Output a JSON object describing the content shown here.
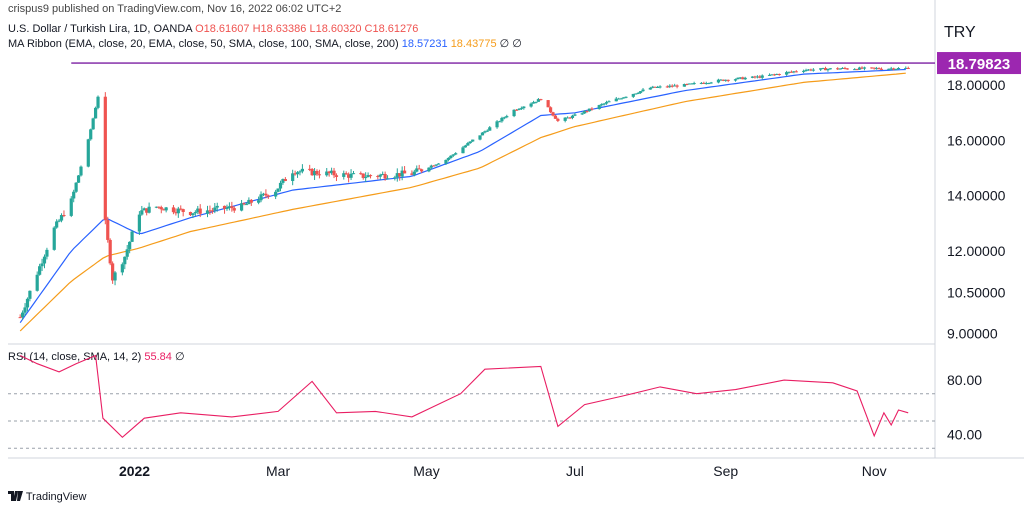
{
  "header": {
    "published": "crispus9 published on TradingView.com, Nov 16, 2022 06:02 UTC+2",
    "symbol_line": "U.S. Dollar / Turkish Lira, 1D, OANDA",
    "ohlc": {
      "o": "O18.61607",
      "h": "H18.63386",
      "l": "L18.60320",
      "c": "C18.61276"
    },
    "ma_ribbon_label": "MA Ribbon (EMA, close, 20, EMA, close, 50, SMA, close, 100, SMA, close, 200)",
    "ma_val_1": "18.57231",
    "ma_val_2": "18.43775",
    "ma_nulls": "∅ ∅",
    "rsi_label": "RSI (14, close, SMA, 14, 2)",
    "rsi_value": "55.84",
    "rsi_null": "∅",
    "currency": "TRY"
  },
  "footer": {
    "brand": "TradingView"
  },
  "colors": {
    "up": "#26a69a",
    "down": "#ef5350",
    "ema20": "#2962ff",
    "ema50": "#f59c1a",
    "rsi": "#e91e63",
    "hline": "#7b1fa2",
    "price_badge": "#9c27b0",
    "ohlc_value": "#ef5350"
  },
  "chart_data": [
    {
      "type": "candlestick",
      "title": "U.S. Dollar / Turkish Lira, 1D, OANDA",
      "price_axis_ticks": [
        "18.00000",
        "16.00000",
        "14.00000",
        "12.00000",
        "10.50000",
        "9.00000"
      ],
      "price_badge": "18.79823",
      "x_ticks": [
        "2022",
        "Mar",
        "May",
        "Jul",
        "Sep",
        "Nov"
      ],
      "horizontal_line": 18.8,
      "anchors": [
        [
          "2021-11-15",
          9.6
        ],
        [
          "2021-11-22",
          11.2
        ],
        [
          "2021-11-29",
          12.8
        ],
        [
          "2021-12-06",
          13.8
        ],
        [
          "2021-12-13",
          16.0
        ],
        [
          "2021-12-17",
          17.6
        ],
        [
          "2021-12-20",
          13.0
        ],
        [
          "2021-12-23",
          11.0
        ],
        [
          "2021-12-28",
          11.8
        ],
        [
          "2022-01-03",
          13.4
        ],
        [
          "2022-01-10",
          13.6
        ],
        [
          "2022-01-24",
          13.4
        ],
        [
          "2022-02-14",
          13.6
        ],
        [
          "2022-02-28",
          14.2
        ],
        [
          "2022-03-07",
          14.9
        ],
        [
          "2022-03-21",
          14.8
        ],
        [
          "2022-04-04",
          14.7
        ],
        [
          "2022-04-25",
          14.8
        ],
        [
          "2022-05-09",
          15.3
        ],
        [
          "2022-05-23",
          16.2
        ],
        [
          "2022-06-06",
          17.1
        ],
        [
          "2022-06-17",
          17.5
        ],
        [
          "2022-06-24",
          16.7
        ],
        [
          "2022-07-01",
          16.9
        ],
        [
          "2022-07-15",
          17.4
        ],
        [
          "2022-08-01",
          17.9
        ],
        [
          "2022-08-15",
          18.0
        ],
        [
          "2022-09-01",
          18.2
        ],
        [
          "2022-09-15",
          18.3
        ],
        [
          "2022-10-03",
          18.55
        ],
        [
          "2022-10-17",
          18.6
        ],
        [
          "2022-11-01",
          18.6
        ],
        [
          "2022-11-15",
          18.61
        ]
      ],
      "ema20": [
        [
          "2021-11-15",
          9.4
        ],
        [
          "2021-12-06",
          12.0
        ],
        [
          "2021-12-20",
          13.2
        ],
        [
          "2022-01-03",
          12.6
        ],
        [
          "2022-01-24",
          13.2
        ],
        [
          "2022-03-07",
          14.2
        ],
        [
          "2022-04-25",
          14.7
        ],
        [
          "2022-05-23",
          15.6
        ],
        [
          "2022-06-17",
          16.9
        ],
        [
          "2022-07-01",
          17.0
        ],
        [
          "2022-08-15",
          17.8
        ],
        [
          "2022-10-03",
          18.4
        ],
        [
          "2022-11-15",
          18.57
        ]
      ],
      "ema50": [
        [
          "2021-11-15",
          9.1
        ],
        [
          "2021-12-06",
          10.9
        ],
        [
          "2021-12-20",
          11.8
        ],
        [
          "2022-01-03",
          12.1
        ],
        [
          "2022-01-24",
          12.7
        ],
        [
          "2022-03-07",
          13.5
        ],
        [
          "2022-04-25",
          14.3
        ],
        [
          "2022-05-23",
          15.0
        ],
        [
          "2022-06-17",
          16.1
        ],
        [
          "2022-07-01",
          16.5
        ],
        [
          "2022-08-15",
          17.4
        ],
        [
          "2022-10-03",
          18.1
        ],
        [
          "2022-11-15",
          18.44
        ]
      ]
    },
    {
      "type": "line",
      "title": "RSI (14, close, SMA, 14, 2)",
      "y_ticks": [
        "80.00",
        "40.00"
      ],
      "bands": [
        30,
        50,
        70
      ],
      "series": [
        {
          "name": "RSI",
          "values": [
            [
              "2021-11-15",
              98
            ],
            [
              "2021-11-22",
              92
            ],
            [
              "2021-12-01",
              86
            ],
            [
              "2021-12-08",
              92
            ],
            [
              "2021-12-16",
              98
            ],
            [
              "2021-12-19",
              52
            ],
            [
              "2021-12-27",
              38
            ],
            [
              "2022-01-05",
              52
            ],
            [
              "2022-01-20",
              56
            ],
            [
              "2022-02-10",
              53
            ],
            [
              "2022-03-01",
              57
            ],
            [
              "2022-03-15",
              79
            ],
            [
              "2022-03-25",
              56
            ],
            [
              "2022-04-10",
              57
            ],
            [
              "2022-04-25",
              53
            ],
            [
              "2022-05-15",
              70
            ],
            [
              "2022-05-25",
              88
            ],
            [
              "2022-06-17",
              90
            ],
            [
              "2022-06-24",
              46
            ],
            [
              "2022-07-05",
              62
            ],
            [
              "2022-07-20",
              68
            ],
            [
              "2022-08-05",
              75
            ],
            [
              "2022-08-20",
              70
            ],
            [
              "2022-09-05",
              73
            ],
            [
              "2022-09-25",
              80
            ],
            [
              "2022-10-15",
              78
            ],
            [
              "2022-10-25",
              72
            ],
            [
              "2022-11-01",
              39
            ],
            [
              "2022-11-05",
              56
            ],
            [
              "2022-11-08",
              47
            ],
            [
              "2022-11-11",
              58
            ],
            [
              "2022-11-15",
              56
            ]
          ]
        }
      ]
    }
  ]
}
